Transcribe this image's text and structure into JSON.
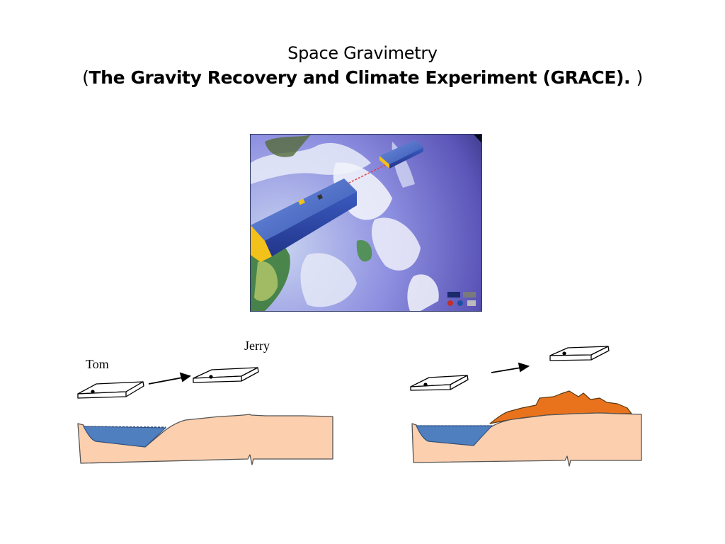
{
  "title": {
    "line1": "Space Gravimetry",
    "line2_open": "(",
    "line2_bold": "The Gravity Recovery and Climate Experiment (GRACE). ",
    "line2_close": ")"
  },
  "diagram_left": {
    "label_lead": "Tom",
    "label_trail": "Jerry"
  },
  "colors": {
    "water": "#4f7fbf",
    "land": "#fccfae",
    "mass_anomaly": "#e9731d",
    "satellite_blue": "#3e63c0",
    "satellite_gold": "#f2c21b",
    "space": "#070a18"
  }
}
